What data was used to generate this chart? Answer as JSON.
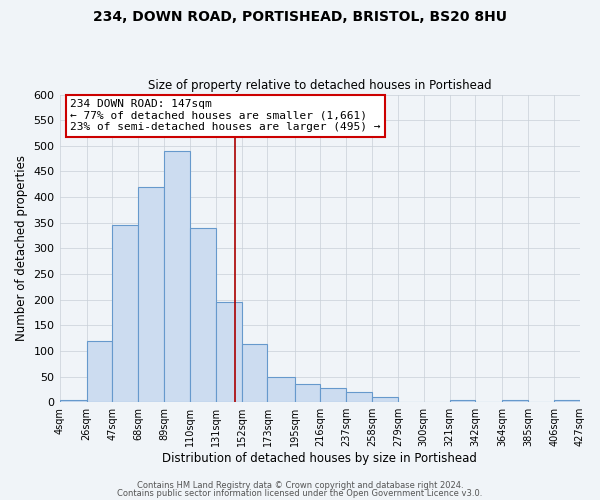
{
  "title": "234, DOWN ROAD, PORTISHEAD, BRISTOL, BS20 8HU",
  "subtitle": "Size of property relative to detached houses in Portishead",
  "xlabel": "Distribution of detached houses by size in Portishead",
  "ylabel": "Number of detached properties",
  "bar_edges": [
    4,
    26,
    47,
    68,
    89,
    110,
    131,
    152,
    173,
    195,
    216,
    237,
    258,
    279,
    300,
    321,
    342,
    364,
    385,
    406,
    427
  ],
  "bar_heights": [
    5,
    120,
    345,
    420,
    490,
    340,
    195,
    113,
    50,
    35,
    28,
    20,
    10,
    0,
    0,
    5,
    0,
    5,
    0,
    5
  ],
  "property_size": 147,
  "bar_color": "#ccdcf0",
  "bar_edge_color": "#6699cc",
  "vline_color": "#aa0000",
  "annotation_line1": "234 DOWN ROAD: 147sqm",
  "annotation_line2": "← 77% of detached houses are smaller (1,661)",
  "annotation_line3": "23% of semi-detached houses are larger (495) →",
  "annotation_box_color": "#ffffff",
  "annotation_box_edge_color": "#cc0000",
  "ylim": [
    0,
    600
  ],
  "yticks": [
    0,
    50,
    100,
    150,
    200,
    250,
    300,
    350,
    400,
    450,
    500,
    550,
    600
  ],
  "footer1": "Contains HM Land Registry data © Crown copyright and database right 2024.",
  "footer2": "Contains public sector information licensed under the Open Government Licence v3.0.",
  "bg_color": "#f0f4f8",
  "plot_bg_color": "#f0f4f8",
  "grid_color": "#c8d0d8"
}
